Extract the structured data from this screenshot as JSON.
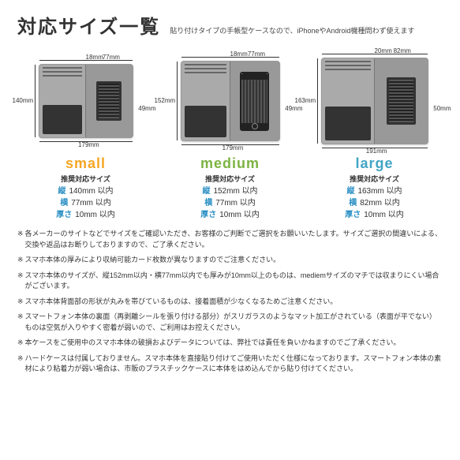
{
  "header": {
    "title": "対応サイズ一覧",
    "subtitle": "貼り付けタイプの手帳型ケースなので、iPhoneやAndroid機種問わず使えます"
  },
  "products": [
    {
      "name": "small",
      "color": "#f5a623",
      "diagram": {
        "case_w": 120,
        "case_h": 94,
        "top_inset": "18mm",
        "top_width": "77mm",
        "left_height": "140mm",
        "right_inner": "49mm",
        "bottom_width": "179mm",
        "has_phone": false
      },
      "sub": "推奨対応サイズ",
      "specs": [
        [
          "縦",
          "140mm 以内"
        ],
        [
          "横",
          "77mm 以内"
        ],
        [
          "厚さ",
          "10mm 以内"
        ]
      ]
    },
    {
      "name": "medium",
      "color": "#7cb342",
      "diagram": {
        "case_w": 126,
        "case_h": 102,
        "top_inset": "18mm",
        "top_width": "77mm",
        "left_height": "152mm",
        "right_inner": "49mm",
        "bottom_width": "179mm",
        "has_phone": true
      },
      "sub": "推奨対応サイズ",
      "specs": [
        [
          "縦",
          "152mm 以内"
        ],
        [
          "横",
          "77mm 以内"
        ],
        [
          "厚さ",
          "10mm 以内"
        ]
      ]
    },
    {
      "name": "large",
      "color": "#42a5c4",
      "diagram": {
        "case_w": 136,
        "case_h": 110,
        "top_inset": "20mm",
        "top_width": "82mm",
        "left_height": "163mm",
        "right_inner": "50mm",
        "bottom_width": "191mm",
        "has_phone": false
      },
      "sub": "推奨対応サイズ",
      "specs": [
        [
          "縦",
          "163mm 以内"
        ],
        [
          "横",
          "82mm 以内"
        ],
        [
          "厚さ",
          "10mm 以内"
        ]
      ]
    }
  ],
  "notes": [
    "各メーカーのサイトなどでサイズをご確認いただき、お客様のご判断でご選択をお願いいたします。サイズご選択の間違いによる、交換や返品はお断りしておりますので、ご了承ください。",
    "スマホ本体の厚みにより収納可能カード枚数が異なりますのでご注意ください。",
    "スマホ本体のサイズが、縦152mm以内・横77mm以内でも厚みが10mm以上のものは、mediemサイズのマチでは収まりにくい場合がございます。",
    "スマホ本体背面部の形状が丸みを帯びているものは、接着面積が少なくなるためご注意ください。",
    "スマートフォン本体の裏面（再剥離シールを張り付ける部分）がスリガラスのようなマット加工がされている（表面が平でない）ものは空気が入りやすく密着が弱いので、ご利用はお控えください。",
    "本ケースをご使用中のスマホ本体の破損およびデータについては、弊社では責任を負いかねますのでご了承ください。",
    "ハードケースは付属しておりません。スマホ本体を直接貼り付けてご使用いただく仕様になっております。スマートフォン本体の素材により粘着力が弱い場合は、市販のプラスチックケースに本体をはめ込んでから貼り付けてください。"
  ]
}
